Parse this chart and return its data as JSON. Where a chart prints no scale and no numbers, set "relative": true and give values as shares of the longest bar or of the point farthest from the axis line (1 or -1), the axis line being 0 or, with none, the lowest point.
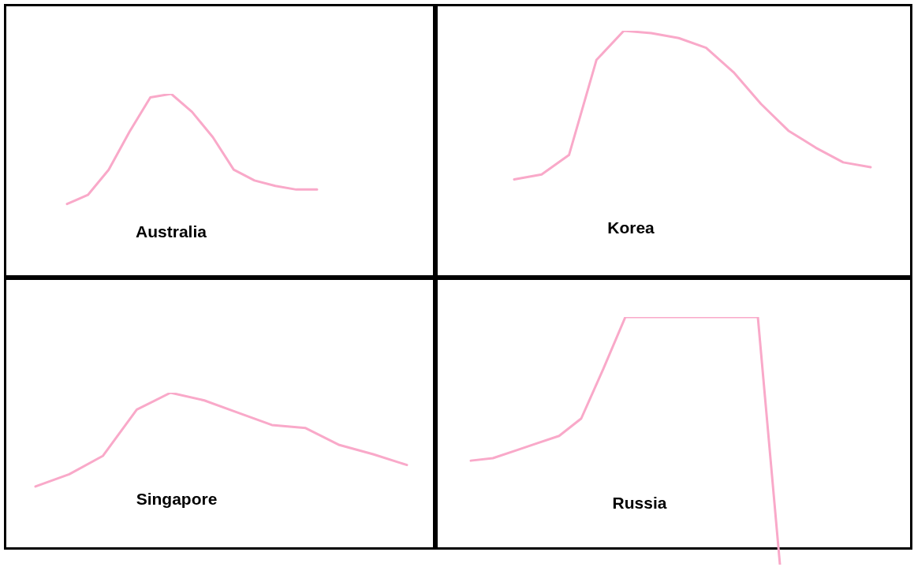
{
  "chart_data": [
    {
      "type": "line",
      "title": "Australia",
      "relative": true,
      "marker": "none",
      "categories": [
        null,
        null,
        null,
        null,
        null,
        null,
        null,
        null,
        null,
        null,
        null,
        null,
        null
      ],
      "series": [
        {
          "color": "#f9a9c9",
          "values": [
            0.39,
            0.44,
            0.58,
            0.79,
            0.98,
            1,
            0.9,
            0.76,
            0.58,
            0.52,
            0.49,
            0.47,
            0.47
          ]
        }
      ]
    },
    {
      "type": "line",
      "title": "Korea",
      "relative": true,
      "marker": "none",
      "categories": [
        null,
        null,
        null,
        null,
        null,
        null,
        null,
        null,
        null,
        null,
        null,
        null,
        null,
        null
      ],
      "series": [
        {
          "color": "#f9a9c9",
          "values": [
            0.39,
            0.41,
            0.49,
            0.88,
            1,
            0.99,
            0.97,
            0.93,
            0.83,
            0.7,
            0.59,
            0.52,
            0.46,
            0.44
          ]
        }
      ]
    },
    {
      "type": "line",
      "title": "Singapore",
      "relative": true,
      "marker": "none",
      "categories": [
        null,
        null,
        null,
        null,
        null,
        null,
        null,
        null,
        null,
        null,
        null,
        null
      ],
      "series": [
        {
          "color": "#f9a9c9",
          "values": [
            0.39,
            0.47,
            0.59,
            0.89,
            1,
            0.95,
            0.87,
            0.79,
            0.77,
            0.66,
            0.6,
            0.53
          ]
        }
      ]
    },
    {
      "type": "line",
      "title": "Russia",
      "relative": true,
      "marker": "none",
      "categories": [
        null,
        null,
        null,
        null,
        null,
        null,
        null,
        null,
        null,
        null,
        null,
        null,
        null,
        null,
        null
      ],
      "series": [
        {
          "color": "#f9a9c9",
          "values": [
            0.42,
            0.43,
            0.46,
            0.49,
            0.52,
            0.59,
            0.79,
            1,
            1,
            1,
            1,
            1,
            1,
            1,
            0
          ]
        }
      ]
    }
  ]
}
